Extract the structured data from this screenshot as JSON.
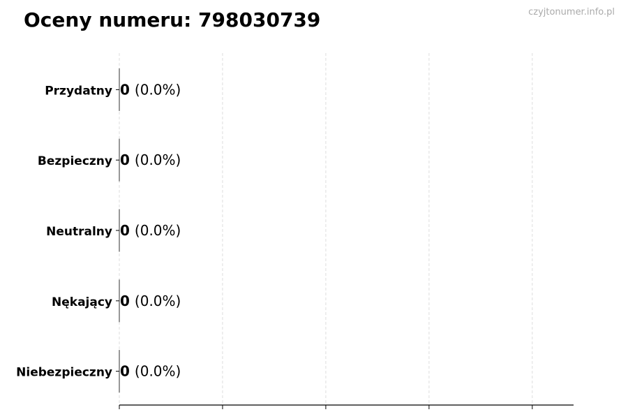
{
  "chart_data": {
    "type": "bar",
    "orientation": "horizontal",
    "title": "Oceny numeru: 798030739",
    "categories": [
      "Przydatny",
      "Bezpieczny",
      "Neutralny",
      "Nękający",
      "Niebezpieczny"
    ],
    "values": [
      0,
      0,
      0,
      0,
      0
    ],
    "data_labels": [
      {
        "count": "0",
        "percent": "(0.0%)"
      },
      {
        "count": "0",
        "percent": "(0.0%)"
      },
      {
        "count": "0",
        "percent": "(0.0%)"
      },
      {
        "count": "0",
        "percent": "(0.0%)"
      },
      {
        "count": "0",
        "percent": "(0.0%)"
      }
    ],
    "xlabel": "",
    "ylabel": "",
    "xlim": [
      0,
      4.4
    ],
    "xticks": [
      0,
      1,
      2,
      3,
      4
    ],
    "xtick_labels_shown": false,
    "grid": "x-dashed",
    "colors": {
      "grid": "#dddddd",
      "axis": "#000000",
      "bar_edge": "#333333"
    }
  },
  "watermark": "czyjtonumer.info.pl"
}
